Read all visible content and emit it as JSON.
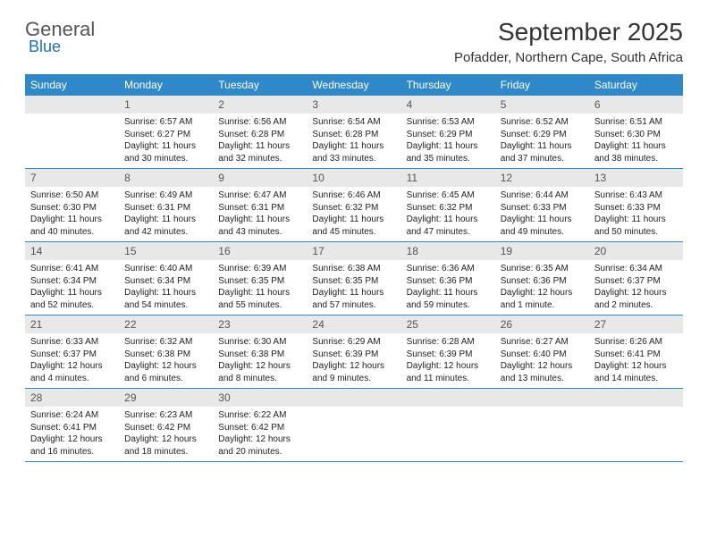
{
  "logo": {
    "text_top": "General",
    "text_bottom": "Blue"
  },
  "header": {
    "title": "September 2025",
    "subtitle": "Pofadder, Northern Cape, South Africa"
  },
  "colors": {
    "header_bg": "#2f88c7",
    "header_text": "#ffffff",
    "daynum_bg": "#e8e8e8",
    "daynum_text": "#555555",
    "body_text": "#222222",
    "rule": "#2f88c7",
    "logo_accent": "#1f71b8"
  },
  "day_names": [
    "Sunday",
    "Monday",
    "Tuesday",
    "Wednesday",
    "Thursday",
    "Friday",
    "Saturday"
  ],
  "weeks": [
    [
      {
        "n": "",
        "sr": "",
        "ss": "",
        "dl": ""
      },
      {
        "n": "1",
        "sr": "Sunrise: 6:57 AM",
        "ss": "Sunset: 6:27 PM",
        "dl": "Daylight: 11 hours and 30 minutes."
      },
      {
        "n": "2",
        "sr": "Sunrise: 6:56 AM",
        "ss": "Sunset: 6:28 PM",
        "dl": "Daylight: 11 hours and 32 minutes."
      },
      {
        "n": "3",
        "sr": "Sunrise: 6:54 AM",
        "ss": "Sunset: 6:28 PM",
        "dl": "Daylight: 11 hours and 33 minutes."
      },
      {
        "n": "4",
        "sr": "Sunrise: 6:53 AM",
        "ss": "Sunset: 6:29 PM",
        "dl": "Daylight: 11 hours and 35 minutes."
      },
      {
        "n": "5",
        "sr": "Sunrise: 6:52 AM",
        "ss": "Sunset: 6:29 PM",
        "dl": "Daylight: 11 hours and 37 minutes."
      },
      {
        "n": "6",
        "sr": "Sunrise: 6:51 AM",
        "ss": "Sunset: 6:30 PM",
        "dl": "Daylight: 11 hours and 38 minutes."
      }
    ],
    [
      {
        "n": "7",
        "sr": "Sunrise: 6:50 AM",
        "ss": "Sunset: 6:30 PM",
        "dl": "Daylight: 11 hours and 40 minutes."
      },
      {
        "n": "8",
        "sr": "Sunrise: 6:49 AM",
        "ss": "Sunset: 6:31 PM",
        "dl": "Daylight: 11 hours and 42 minutes."
      },
      {
        "n": "9",
        "sr": "Sunrise: 6:47 AM",
        "ss": "Sunset: 6:31 PM",
        "dl": "Daylight: 11 hours and 43 minutes."
      },
      {
        "n": "10",
        "sr": "Sunrise: 6:46 AM",
        "ss": "Sunset: 6:32 PM",
        "dl": "Daylight: 11 hours and 45 minutes."
      },
      {
        "n": "11",
        "sr": "Sunrise: 6:45 AM",
        "ss": "Sunset: 6:32 PM",
        "dl": "Daylight: 11 hours and 47 minutes."
      },
      {
        "n": "12",
        "sr": "Sunrise: 6:44 AM",
        "ss": "Sunset: 6:33 PM",
        "dl": "Daylight: 11 hours and 49 minutes."
      },
      {
        "n": "13",
        "sr": "Sunrise: 6:43 AM",
        "ss": "Sunset: 6:33 PM",
        "dl": "Daylight: 11 hours and 50 minutes."
      }
    ],
    [
      {
        "n": "14",
        "sr": "Sunrise: 6:41 AM",
        "ss": "Sunset: 6:34 PM",
        "dl": "Daylight: 11 hours and 52 minutes."
      },
      {
        "n": "15",
        "sr": "Sunrise: 6:40 AM",
        "ss": "Sunset: 6:34 PM",
        "dl": "Daylight: 11 hours and 54 minutes."
      },
      {
        "n": "16",
        "sr": "Sunrise: 6:39 AM",
        "ss": "Sunset: 6:35 PM",
        "dl": "Daylight: 11 hours and 55 minutes."
      },
      {
        "n": "17",
        "sr": "Sunrise: 6:38 AM",
        "ss": "Sunset: 6:35 PM",
        "dl": "Daylight: 11 hours and 57 minutes."
      },
      {
        "n": "18",
        "sr": "Sunrise: 6:36 AM",
        "ss": "Sunset: 6:36 PM",
        "dl": "Daylight: 11 hours and 59 minutes."
      },
      {
        "n": "19",
        "sr": "Sunrise: 6:35 AM",
        "ss": "Sunset: 6:36 PM",
        "dl": "Daylight: 12 hours and 1 minute."
      },
      {
        "n": "20",
        "sr": "Sunrise: 6:34 AM",
        "ss": "Sunset: 6:37 PM",
        "dl": "Daylight: 12 hours and 2 minutes."
      }
    ],
    [
      {
        "n": "21",
        "sr": "Sunrise: 6:33 AM",
        "ss": "Sunset: 6:37 PM",
        "dl": "Daylight: 12 hours and 4 minutes."
      },
      {
        "n": "22",
        "sr": "Sunrise: 6:32 AM",
        "ss": "Sunset: 6:38 PM",
        "dl": "Daylight: 12 hours and 6 minutes."
      },
      {
        "n": "23",
        "sr": "Sunrise: 6:30 AM",
        "ss": "Sunset: 6:38 PM",
        "dl": "Daylight: 12 hours and 8 minutes."
      },
      {
        "n": "24",
        "sr": "Sunrise: 6:29 AM",
        "ss": "Sunset: 6:39 PM",
        "dl": "Daylight: 12 hours and 9 minutes."
      },
      {
        "n": "25",
        "sr": "Sunrise: 6:28 AM",
        "ss": "Sunset: 6:39 PM",
        "dl": "Daylight: 12 hours and 11 minutes."
      },
      {
        "n": "26",
        "sr": "Sunrise: 6:27 AM",
        "ss": "Sunset: 6:40 PM",
        "dl": "Daylight: 12 hours and 13 minutes."
      },
      {
        "n": "27",
        "sr": "Sunrise: 6:26 AM",
        "ss": "Sunset: 6:41 PM",
        "dl": "Daylight: 12 hours and 14 minutes."
      }
    ],
    [
      {
        "n": "28",
        "sr": "Sunrise: 6:24 AM",
        "ss": "Sunset: 6:41 PM",
        "dl": "Daylight: 12 hours and 16 minutes."
      },
      {
        "n": "29",
        "sr": "Sunrise: 6:23 AM",
        "ss": "Sunset: 6:42 PM",
        "dl": "Daylight: 12 hours and 18 minutes."
      },
      {
        "n": "30",
        "sr": "Sunrise: 6:22 AM",
        "ss": "Sunset: 6:42 PM",
        "dl": "Daylight: 12 hours and 20 minutes."
      },
      {
        "n": "",
        "sr": "",
        "ss": "",
        "dl": ""
      },
      {
        "n": "",
        "sr": "",
        "ss": "",
        "dl": ""
      },
      {
        "n": "",
        "sr": "",
        "ss": "",
        "dl": ""
      },
      {
        "n": "",
        "sr": "",
        "ss": "",
        "dl": ""
      }
    ]
  ]
}
